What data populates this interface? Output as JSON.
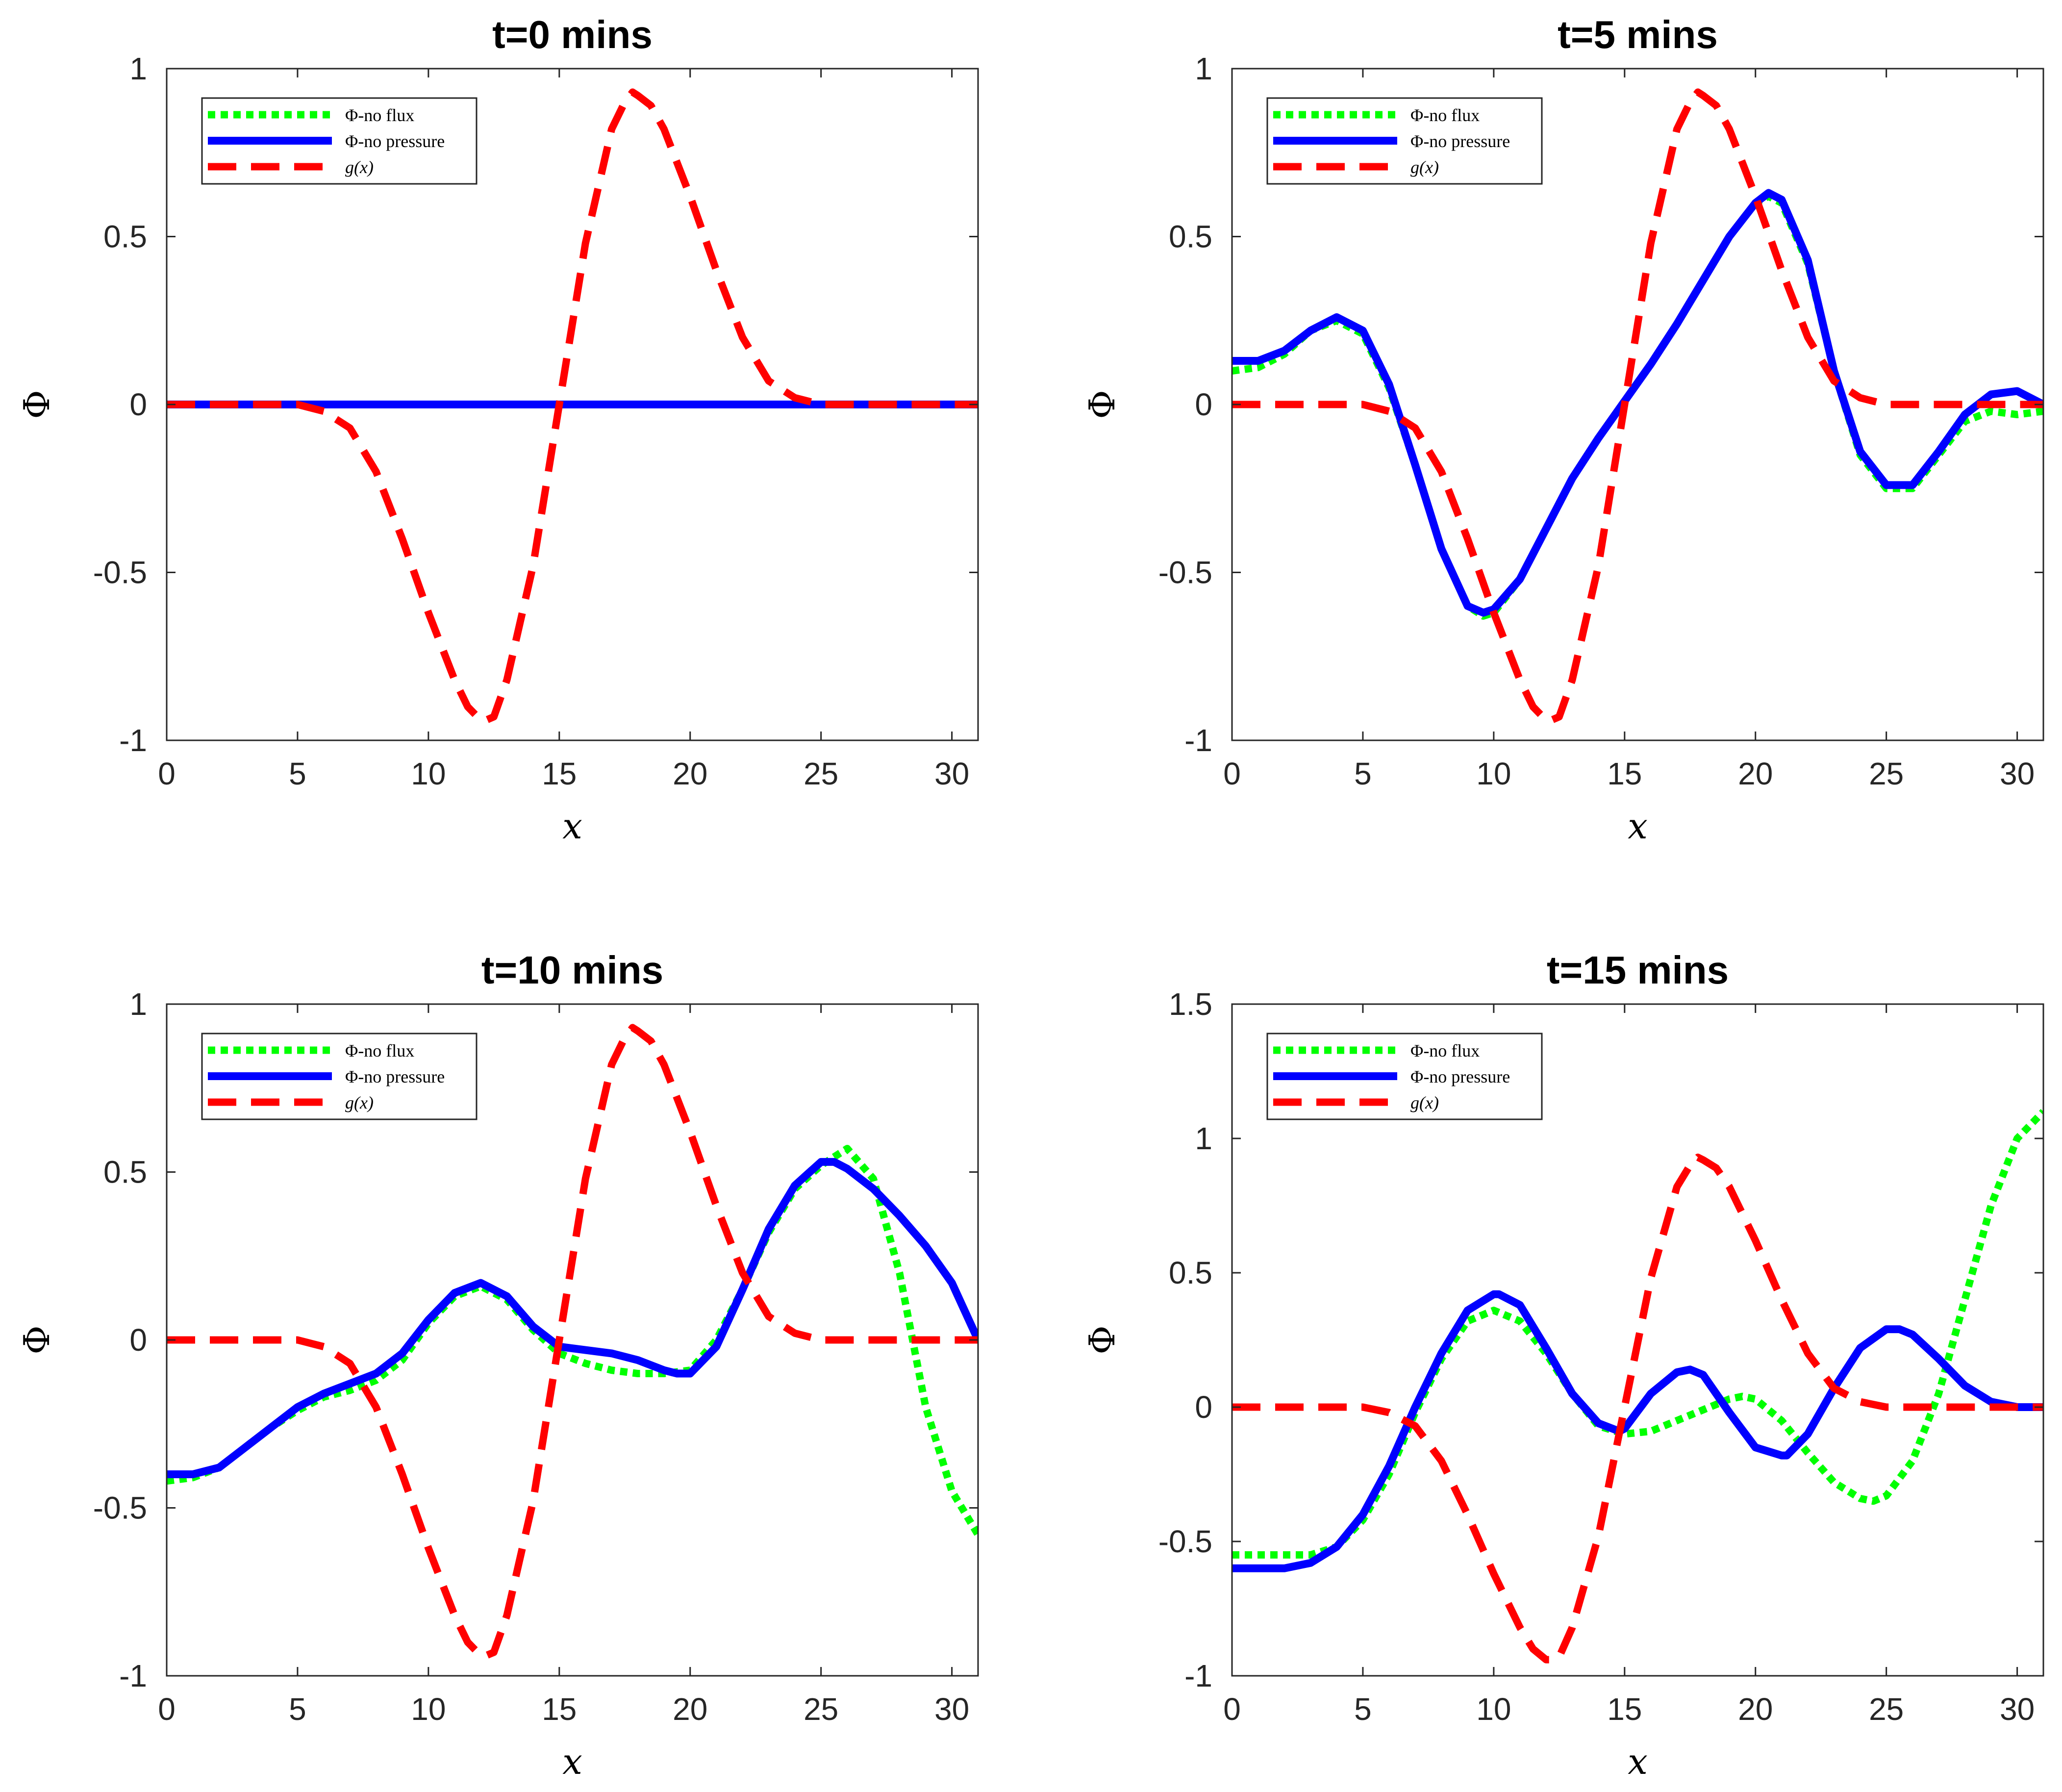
{
  "figure": {
    "panels": [
      {
        "title": "t=0 mins"
      },
      {
        "title": "t=5 mins"
      },
      {
        "title": "t=10 mins"
      },
      {
        "title": "t=15 mins"
      }
    ]
  },
  "chart_data": [
    {
      "type": "line",
      "title": "t=0 mins",
      "xlabel": "x",
      "ylabel": "Φ",
      "xlim": [
        0,
        31
      ],
      "ylim": [
        -1,
        1
      ],
      "xticks": [
        "0",
        "5",
        "10",
        "15",
        "20",
        "25",
        "30"
      ],
      "yticks": [
        "-1",
        "-0.5",
        "0",
        "0.5",
        "1"
      ],
      "legend": {
        "placement": "top-left",
        "entries": [
          "Φ-no flux",
          "Φ-no pressure",
          "g(x)"
        ]
      },
      "series": [
        {
          "name": "Φ-no flux",
          "color": "#00ff00",
          "style": "dotted",
          "x": [
            0,
            31
          ],
          "y": [
            0,
            0
          ]
        },
        {
          "name": "Φ-no pressure",
          "color": "#0000ff",
          "style": "solid",
          "x": [
            0,
            31
          ],
          "y": [
            0,
            0
          ]
        },
        {
          "name": "g(x)",
          "color": "#ff0000",
          "style": "dashed",
          "x": [
            0,
            2,
            4,
            5,
            6,
            7,
            8,
            9,
            10,
            11,
            11.5,
            12,
            12.2,
            12.5,
            13,
            14,
            15,
            16,
            17,
            17.5,
            17.8,
            18,
            18.5,
            19,
            20,
            21,
            22,
            23,
            24,
            25,
            27,
            29,
            31
          ],
          "y": [
            0,
            0,
            0,
            0,
            -0.02,
            -0.07,
            -0.2,
            -0.4,
            -0.62,
            -0.82,
            -0.9,
            -0.94,
            -0.94,
            -0.93,
            -0.82,
            -0.48,
            0,
            0.48,
            0.82,
            0.9,
            0.93,
            0.92,
            0.89,
            0.82,
            0.62,
            0.4,
            0.2,
            0.07,
            0.02,
            0,
            0,
            0,
            0
          ]
        }
      ]
    },
    {
      "type": "line",
      "title": "t=5 mins",
      "xlabel": "x",
      "ylabel": "Φ",
      "xlim": [
        0,
        31
      ],
      "ylim": [
        -1,
        1
      ],
      "xticks": [
        "0",
        "5",
        "10",
        "15",
        "20",
        "25",
        "30"
      ],
      "yticks": [
        "-1",
        "-0.5",
        "0",
        "0.5",
        "1"
      ],
      "legend": {
        "placement": "top-left",
        "entries": [
          "Φ-no flux",
          "Φ-no pressure",
          "g(x)"
        ]
      },
      "series": [
        {
          "name": "Φ-no flux",
          "color": "#00ff00",
          "style": "dotted",
          "x": [
            0,
            1,
            2,
            3,
            4,
            5,
            6,
            7,
            8,
            9,
            9.6,
            10,
            11,
            12,
            13,
            14,
            15,
            16,
            17,
            18,
            19,
            20,
            20.5,
            21,
            22,
            23,
            24,
            25,
            26,
            27,
            28,
            29,
            30,
            31
          ],
          "y": [
            0.1,
            0.11,
            0.15,
            0.22,
            0.25,
            0.21,
            0.05,
            -0.18,
            -0.43,
            -0.6,
            -0.63,
            -0.62,
            -0.52,
            -0.37,
            -0.22,
            -0.1,
            0.01,
            0.12,
            0.24,
            0.37,
            0.5,
            0.6,
            0.62,
            0.6,
            0.42,
            0.1,
            -0.15,
            -0.25,
            -0.25,
            -0.15,
            -0.05,
            -0.02,
            -0.03,
            -0.02
          ]
        },
        {
          "name": "Φ-no pressure",
          "color": "#0000ff",
          "style": "solid",
          "x": [
            0,
            1,
            2,
            3,
            4,
            5,
            6,
            7,
            8,
            9,
            9.6,
            10,
            11,
            12,
            13,
            14,
            15,
            16,
            17,
            18,
            19,
            20,
            20.5,
            21,
            22,
            23,
            24,
            25,
            26,
            27,
            28,
            29,
            30,
            31
          ],
          "y": [
            0.13,
            0.13,
            0.16,
            0.22,
            0.26,
            0.22,
            0.06,
            -0.18,
            -0.43,
            -0.6,
            -0.62,
            -0.61,
            -0.52,
            -0.37,
            -0.22,
            -0.1,
            0.01,
            0.12,
            0.24,
            0.37,
            0.5,
            0.6,
            0.63,
            0.61,
            0.43,
            0.1,
            -0.14,
            -0.24,
            -0.24,
            -0.14,
            -0.03,
            0.03,
            0.04,
            0
          ]
        },
        {
          "name": "g(x)",
          "color": "#ff0000",
          "style": "dashed",
          "x": [
            0,
            2,
            4,
            5,
            6,
            7,
            8,
            9,
            10,
            11,
            11.5,
            12,
            12.2,
            12.5,
            13,
            14,
            15,
            16,
            17,
            17.5,
            17.8,
            18,
            18.5,
            19,
            20,
            21,
            22,
            23,
            24,
            25,
            27,
            29,
            31
          ],
          "y": [
            0,
            0,
            0,
            0,
            -0.02,
            -0.07,
            -0.2,
            -0.4,
            -0.62,
            -0.82,
            -0.9,
            -0.94,
            -0.94,
            -0.93,
            -0.82,
            -0.48,
            0,
            0.48,
            0.82,
            0.9,
            0.93,
            0.92,
            0.89,
            0.82,
            0.62,
            0.4,
            0.2,
            0.07,
            0.02,
            0,
            0,
            0,
            0
          ]
        }
      ]
    },
    {
      "type": "line",
      "title": "t=10 mins",
      "xlabel": "x",
      "ylabel": "Φ",
      "xlim": [
        0,
        31
      ],
      "ylim": [
        -1,
        1
      ],
      "xticks": [
        "0",
        "5",
        "10",
        "15",
        "20",
        "25",
        "30"
      ],
      "yticks": [
        "-1",
        "-0.5",
        "0",
        "0.5",
        "1"
      ],
      "legend": {
        "placement": "top-left",
        "entries": [
          "Φ-no flux",
          "Φ-no pressure",
          "g(x)"
        ]
      },
      "series": [
        {
          "name": "Φ-no flux",
          "color": "#00ff00",
          "style": "dotted",
          "x": [
            0,
            1,
            2,
            3,
            4,
            5,
            6,
            7,
            8,
            9,
            10,
            11,
            12,
            13,
            14,
            15,
            16,
            17,
            18,
            19,
            20,
            21,
            22,
            23,
            24,
            25,
            26,
            27,
            28,
            29,
            30,
            31
          ],
          "y": [
            -0.42,
            -0.41,
            -0.38,
            -0.32,
            -0.26,
            -0.21,
            -0.17,
            -0.15,
            -0.12,
            -0.06,
            0.05,
            0.13,
            0.16,
            0.12,
            0.03,
            -0.04,
            -0.07,
            -0.09,
            -0.1,
            -0.1,
            -0.09,
            0,
            0.15,
            0.32,
            0.45,
            0.52,
            0.57,
            0.48,
            0.2,
            -0.2,
            -0.45,
            -0.58
          ]
        },
        {
          "name": "Φ-no pressure",
          "color": "#0000ff",
          "style": "solid",
          "x": [
            0,
            1,
            2,
            3,
            4,
            5,
            6,
            7,
            8,
            9,
            10,
            11,
            12,
            13,
            14,
            15,
            16,
            17,
            18,
            19,
            19.5,
            20,
            21,
            22,
            23,
            24,
            25,
            25.5,
            26,
            27,
            28,
            29,
            30,
            31
          ],
          "y": [
            -0.4,
            -0.4,
            -0.38,
            -0.32,
            -0.26,
            -0.2,
            -0.16,
            -0.13,
            -0.1,
            -0.04,
            0.06,
            0.14,
            0.17,
            0.13,
            0.04,
            -0.02,
            -0.03,
            -0.04,
            -0.06,
            -0.09,
            -0.1,
            -0.1,
            -0.02,
            0.15,
            0.33,
            0.46,
            0.53,
            0.53,
            0.51,
            0.45,
            0.37,
            0.28,
            0.17,
            0
          ]
        },
        {
          "name": "g(x)",
          "color": "#ff0000",
          "style": "dashed",
          "x": [
            0,
            2,
            4,
            5,
            6,
            7,
            8,
            9,
            10,
            11,
            11.5,
            12,
            12.2,
            12.5,
            13,
            14,
            15,
            16,
            17,
            17.5,
            17.8,
            18,
            18.5,
            19,
            20,
            21,
            22,
            23,
            24,
            25,
            27,
            29,
            31
          ],
          "y": [
            0,
            0,
            0,
            0,
            -0.02,
            -0.07,
            -0.2,
            -0.4,
            -0.62,
            -0.82,
            -0.9,
            -0.94,
            -0.94,
            -0.93,
            -0.82,
            -0.48,
            0,
            0.48,
            0.82,
            0.9,
            0.93,
            0.92,
            0.89,
            0.82,
            0.62,
            0.4,
            0.2,
            0.07,
            0.02,
            0,
            0,
            0,
            0
          ]
        }
      ]
    },
    {
      "type": "line",
      "title": "t=15 mins",
      "xlabel": "x",
      "ylabel": "Φ",
      "xlim": [
        0,
        31
      ],
      "ylim": [
        -1,
        1.5
      ],
      "xticks": [
        "0",
        "5",
        "10",
        "15",
        "20",
        "25",
        "30"
      ],
      "yticks": [
        "-1",
        "-0.5",
        "0",
        "0.5",
        "1",
        "1.5"
      ],
      "legend": {
        "placement": "top-left",
        "entries": [
          "Φ-no flux",
          "Φ-no pressure",
          "g(x)"
        ]
      },
      "series": [
        {
          "name": "Φ-no flux",
          "color": "#00ff00",
          "style": "dotted",
          "x": [
            0,
            1,
            2,
            3,
            4,
            5,
            6,
            7,
            8,
            9,
            10,
            11,
            12,
            13,
            14,
            15,
            16,
            17,
            18,
            19,
            19.5,
            20,
            21,
            22,
            23,
            24,
            24.5,
            25,
            26,
            27,
            28,
            29,
            30,
            31
          ],
          "y": [
            -0.55,
            -0.55,
            -0.55,
            -0.55,
            -0.52,
            -0.42,
            -0.25,
            -0.02,
            0.18,
            0.32,
            0.36,
            0.32,
            0.2,
            0.05,
            -0.07,
            -0.1,
            -0.09,
            -0.05,
            -0.01,
            0.03,
            0.04,
            0.03,
            -0.05,
            -0.17,
            -0.28,
            -0.34,
            -0.35,
            -0.33,
            -0.2,
            0.05,
            0.4,
            0.75,
            1.0,
            1.1
          ]
        },
        {
          "name": "Φ-no pressure",
          "color": "#0000ff",
          "style": "solid",
          "x": [
            0,
            1,
            2,
            3,
            4,
            5,
            6,
            7,
            8,
            9,
            10,
            10.2,
            11,
            12,
            13,
            14,
            14.8,
            15,
            16,
            17,
            17.5,
            18,
            19,
            20,
            21,
            21.2,
            22,
            23,
            24,
            25,
            25.5,
            26,
            27,
            28,
            29,
            30,
            31
          ],
          "y": [
            -0.6,
            -0.6,
            -0.6,
            -0.58,
            -0.52,
            -0.4,
            -0.22,
            0,
            0.2,
            0.36,
            0.42,
            0.42,
            0.38,
            0.22,
            0.05,
            -0.06,
            -0.09,
            -0.08,
            0.05,
            0.13,
            0.14,
            0.12,
            -0.02,
            -0.15,
            -0.18,
            -0.18,
            -0.1,
            0.07,
            0.22,
            0.29,
            0.29,
            0.27,
            0.18,
            0.08,
            0.02,
            0,
            0
          ]
        },
        {
          "name": "g(x)",
          "color": "#ff0000",
          "style": "dashed",
          "x": [
            0,
            2,
            4,
            5,
            6,
            7,
            8,
            9,
            10,
            11,
            11.5,
            12,
            12.2,
            12.5,
            13,
            14,
            15,
            16,
            17,
            17.5,
            17.8,
            18,
            18.5,
            19,
            20,
            21,
            22,
            23,
            24,
            25,
            27,
            29,
            31
          ],
          "y": [
            0,
            0,
            0,
            0,
            -0.02,
            -0.07,
            -0.2,
            -0.4,
            -0.62,
            -0.82,
            -0.9,
            -0.94,
            -0.94,
            -0.93,
            -0.82,
            -0.48,
            0,
            0.48,
            0.82,
            0.9,
            0.93,
            0.92,
            0.89,
            0.82,
            0.62,
            0.4,
            0.2,
            0.07,
            0.02,
            0,
            0,
            0,
            0
          ]
        }
      ]
    }
  ]
}
